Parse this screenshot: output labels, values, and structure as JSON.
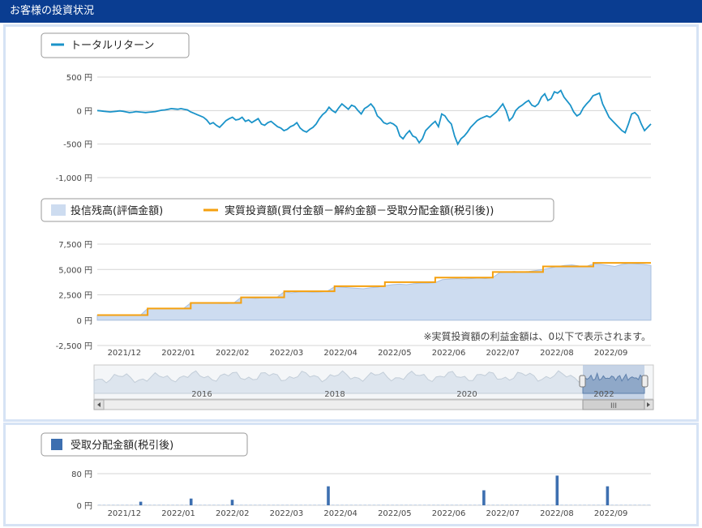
{
  "header": {
    "title": "お客様の投資状況"
  },
  "colors": {
    "header_bg": "#0a3d91",
    "return_line": "#1a93c9",
    "balance_fill": "#cddcf0",
    "invest_line": "#f5a00f",
    "dist_bar": "#3d6fb0",
    "grid": "#d4d4d4",
    "axis_text": "#444444"
  },
  "chart_data": [
    {
      "id": "total-return",
      "type": "line",
      "legend": [
        "トータルリターン"
      ],
      "yticks": [
        "500 円",
        "0 円",
        "-500 円",
        "-1,000 円"
      ],
      "ylim": [
        -1000,
        500
      ],
      "series": [
        {
          "name": "トータルリターン",
          "values": [
            0,
            -5,
            -10,
            -15,
            -20,
            -15,
            -10,
            -5,
            -10,
            -20,
            -30,
            -25,
            -15,
            -20,
            -25,
            -30,
            -25,
            -20,
            -15,
            -5,
            5,
            10,
            20,
            30,
            25,
            20,
            30,
            20,
            10,
            -20,
            -40,
            -60,
            -80,
            -100,
            -140,
            -200,
            -180,
            -220,
            -250,
            -200,
            -150,
            -120,
            -100,
            -140,
            -130,
            -100,
            -160,
            -140,
            -180,
            -150,
            -120,
            -200,
            -220,
            -180,
            -160,
            -200,
            -240,
            -260,
            -300,
            -280,
            -240,
            -220,
            -180,
            -260,
            -300,
            -320,
            -280,
            -250,
            -200,
            -120,
            -60,
            -20,
            50,
            0,
            -30,
            40,
            100,
            60,
            20,
            80,
            60,
            0,
            -50,
            30,
            60,
            100,
            40,
            -80,
            -120,
            -180,
            -200,
            -180,
            -200,
            -240,
            -380,
            -420,
            -350,
            -300,
            -380,
            -400,
            -480,
            -420,
            -300,
            -250,
            -200,
            -160,
            -240,
            -50,
            -80,
            -150,
            -200,
            -380,
            -500,
            -420,
            -380,
            -320,
            -250,
            -200,
            -150,
            -120,
            -100,
            -80,
            -100,
            -60,
            -20,
            40,
            100,
            0,
            -150,
            -100,
            0,
            50,
            80,
            120,
            150,
            80,
            60,
            100,
            200,
            250,
            150,
            180,
            280,
            260,
            300,
            200,
            140,
            80,
            -20,
            -80,
            -50,
            40,
            100,
            150,
            220,
            240,
            260,
            100,
            0,
            -100,
            -150,
            -200,
            -250,
            -300,
            -330,
            -200,
            -50,
            -30,
            -80,
            -200,
            -300,
            -250,
            -200
          ]
        }
      ]
    },
    {
      "id": "balance",
      "type": "area",
      "legend": [
        "投信残高(評価金額)",
        "実質投資額(買付金額－解約金額－受取分配金額(税引後))"
      ],
      "yticks": [
        "7,500 円",
        "5,000 円",
        "2,500 円",
        "0 円",
        "-2,500 円"
      ],
      "ylim": [
        -2500,
        7500
      ],
      "xticks": [
        "2021/12",
        "2022/01",
        "2022/02",
        "2022/03",
        "2022/04",
        "2022/05",
        "2022/06",
        "2022/07",
        "2022/08",
        "2022/09"
      ],
      "note": "※実質投資額の利益金額は、0以下で表示されます。",
      "series": [
        {
          "name": "投信残高(評価金額)",
          "values": [
            500,
            500,
            500,
            500,
            500,
            500,
            480,
            1150,
            1150,
            1140,
            1150,
            1150,
            1150,
            1700,
            1690,
            1680,
            1700,
            1650,
            1650,
            1700,
            2250,
            2200,
            2150,
            2200,
            2200,
            2260,
            2800,
            2700,
            2780,
            2800,
            2760,
            2780,
            2850,
            3300,
            3250,
            3200,
            3150,
            3100,
            3200,
            3250,
            3400,
            3500,
            3550,
            3500,
            3600,
            3650,
            3650,
            3700,
            4000,
            4050,
            4100,
            4050,
            4100,
            4150,
            4100,
            4200,
            4700,
            4750,
            4800,
            4760,
            4800,
            4900,
            5000,
            5150,
            5300,
            5400,
            5450,
            5350,
            5300,
            5550,
            5500,
            5400,
            5300,
            5500,
            5600,
            5550,
            5500,
            5400
          ]
        },
        {
          "name": "実質投資額(買付金額－解約金額－受取分配金額(税引後))",
          "values": [
            500,
            500,
            500,
            500,
            500,
            500,
            500,
            1150,
            1150,
            1150,
            1150,
            1150,
            1150,
            1700,
            1700,
            1700,
            1700,
            1700,
            1700,
            1700,
            2250,
            2250,
            2250,
            2250,
            2250,
            2250,
            2850,
            2850,
            2850,
            2850,
            2850,
            2850,
            2850,
            3350,
            3350,
            3350,
            3350,
            3350,
            3350,
            3350,
            3750,
            3750,
            3750,
            3750,
            3750,
            3750,
            3750,
            4200,
            4200,
            4200,
            4200,
            4200,
            4200,
            4200,
            4200,
            4750,
            4750,
            4750,
            4750,
            4750,
            4750,
            4750,
            5300,
            5300,
            5300,
            5300,
            5300,
            5300,
            5300,
            5650,
            5650,
            5650,
            5650,
            5650,
            5650,
            5650,
            5650,
            5650
          ]
        }
      ]
    },
    {
      "id": "distribution",
      "type": "bar",
      "legend": [
        "受取分配金額(税引後)"
      ],
      "yticks": [
        "80 円",
        "0 円"
      ],
      "ylim": [
        0,
        80
      ],
      "xticks": [
        "2021/12",
        "2022/01",
        "2022/02",
        "2022/03",
        "2022/04",
        "2022/05",
        "2022/06",
        "2022/07",
        "2022/08",
        "2022/09"
      ],
      "series": [
        {
          "name": "受取分配金額(税引後)",
          "values": [
            0,
            0,
            0,
            0,
            0,
            0,
            0,
            0,
            0,
            9,
            0,
            0,
            0,
            0,
            0,
            0,
            0,
            0,
            0,
            0,
            17,
            0,
            0,
            0,
            0,
            0,
            0,
            0,
            0,
            14,
            0,
            0,
            0,
            0,
            0,
            0,
            0,
            0,
            0,
            0,
            0,
            0,
            0,
            0,
            0,
            0,
            0,
            0,
            0,
            0,
            48,
            0,
            0,
            0,
            0,
            0,
            0,
            0,
            0,
            0,
            0,
            0,
            0,
            0,
            0,
            0,
            0,
            0,
            0,
            0,
            0,
            0,
            0,
            0,
            0,
            0,
            0,
            0,
            0,
            0,
            0,
            0,
            0,
            0,
            38,
            0,
            0,
            0,
            0,
            0,
            0,
            0,
            0,
            0,
            0,
            0,
            0,
            0,
            0,
            0,
            75,
            0,
            0,
            0,
            0,
            0,
            0,
            0,
            0,
            0,
            0,
            48,
            0,
            0,
            0,
            0,
            0,
            0,
            0,
            0,
            0
          ]
        }
      ]
    }
  ],
  "navigator": {
    "labels": [
      "2016",
      "2018",
      "2020",
      "2022"
    ],
    "scroll_left_icon": "arrow-left-icon",
    "scroll_right_icon": "arrow-right-icon",
    "thumb_icon": "grip-icon"
  }
}
